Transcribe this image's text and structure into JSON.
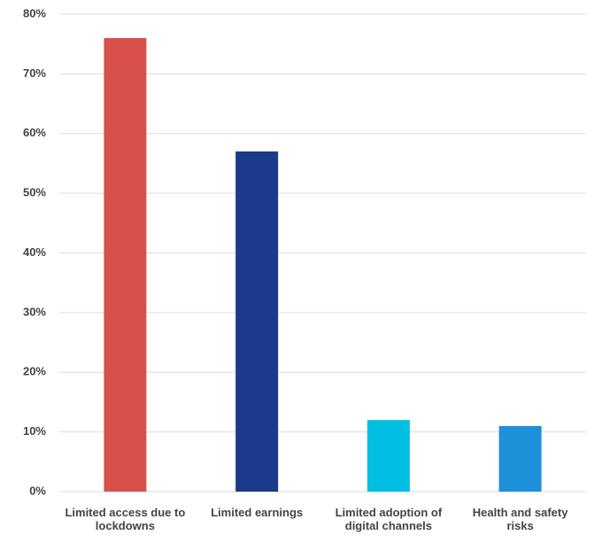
{
  "chart_data": {
    "type": "bar",
    "categories": [
      "Limited access due to lockdowns",
      "Limited earnings",
      "Limited adoption of digital channels",
      "Health and safety risks"
    ],
    "values": [
      76,
      57,
      12,
      11
    ],
    "colors": [
      "#d9504a",
      "#1b3a8c",
      "#00bfe3",
      "#1e90d9"
    ],
    "ylim": [
      0,
      80
    ],
    "yticks": [
      {
        "value": 0,
        "label": "0%"
      },
      {
        "value": 10,
        "label": "10%"
      },
      {
        "value": 20,
        "label": "20%"
      },
      {
        "value": 30,
        "label": "30%"
      },
      {
        "value": 40,
        "label": "40%"
      },
      {
        "value": 50,
        "label": "50%"
      },
      {
        "value": 60,
        "label": "60%"
      },
      {
        "value": 70,
        "label": "70%"
      },
      {
        "value": 80,
        "label": "80%"
      }
    ],
    "grid": true
  }
}
